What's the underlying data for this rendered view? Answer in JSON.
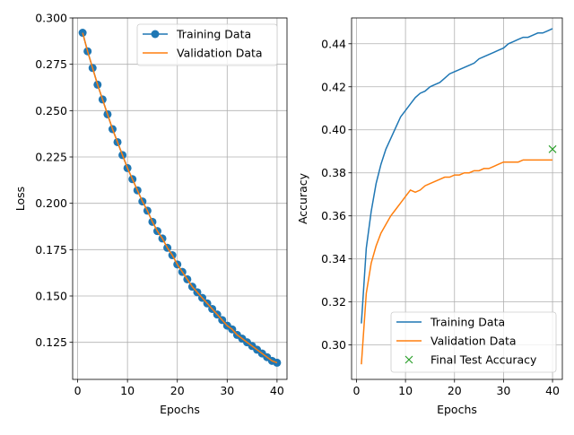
{
  "chart_data": [
    {
      "type": "line",
      "xlabel": "Epochs",
      "ylabel": "Loss",
      "xlim": [
        -1,
        42
      ],
      "ylim": [
        0.105,
        0.3
      ],
      "xticks": [
        0,
        10,
        20,
        30,
        40
      ],
      "yticks": [
        0.125,
        0.15,
        0.175,
        0.2,
        0.225,
        0.25,
        0.275,
        0.3
      ],
      "ytick_labels": [
        "0.125",
        "0.150",
        "0.175",
        "0.200",
        "0.225",
        "0.250",
        "0.275",
        "0.300"
      ],
      "grid": true,
      "legend_position": "top-right",
      "x": [
        1,
        2,
        3,
        4,
        5,
        6,
        7,
        8,
        9,
        10,
        11,
        12,
        13,
        14,
        15,
        16,
        17,
        18,
        19,
        20,
        21,
        22,
        23,
        24,
        25,
        26,
        27,
        28,
        29,
        30,
        31,
        32,
        33,
        34,
        35,
        36,
        37,
        38,
        39,
        40
      ],
      "series": [
        {
          "name": "Training Data",
          "color": "#1f77b4",
          "marker": "circle",
          "values": [
            0.292,
            0.282,
            0.273,
            0.264,
            0.256,
            0.248,
            0.24,
            0.233,
            0.226,
            0.219,
            0.213,
            0.207,
            0.201,
            0.196,
            0.19,
            0.185,
            0.181,
            0.176,
            0.172,
            0.167,
            0.163,
            0.159,
            0.155,
            0.152,
            0.149,
            0.146,
            0.143,
            0.14,
            0.137,
            0.134,
            0.132,
            0.129,
            0.127,
            0.125,
            0.123,
            0.121,
            0.119,
            0.117,
            0.115,
            0.114
          ]
        },
        {
          "name": "Validation Data",
          "color": "#ff7f0e",
          "marker": "none",
          "values": [
            0.292,
            0.282,
            0.273,
            0.264,
            0.256,
            0.248,
            0.24,
            0.233,
            0.226,
            0.219,
            0.213,
            0.207,
            0.201,
            0.196,
            0.19,
            0.185,
            0.181,
            0.176,
            0.172,
            0.167,
            0.163,
            0.159,
            0.155,
            0.152,
            0.149,
            0.146,
            0.143,
            0.14,
            0.137,
            0.134,
            0.132,
            0.129,
            0.127,
            0.125,
            0.123,
            0.121,
            0.119,
            0.117,
            0.115,
            0.114
          ]
        }
      ]
    },
    {
      "type": "line",
      "xlabel": "Epochs",
      "ylabel": "Accuracy",
      "xlim": [
        -1,
        42
      ],
      "ylim": [
        0.284,
        0.452
      ],
      "xticks": [
        0,
        10,
        20,
        30,
        40
      ],
      "yticks": [
        0.3,
        0.32,
        0.34,
        0.36,
        0.38,
        0.4,
        0.42,
        0.44
      ],
      "ytick_labels": [
        "0.30",
        "0.32",
        "0.34",
        "0.36",
        "0.38",
        "0.40",
        "0.42",
        "0.44"
      ],
      "grid": true,
      "legend_position": "bottom-right",
      "x": [
        1,
        2,
        3,
        4,
        5,
        6,
        7,
        8,
        9,
        10,
        11,
        12,
        13,
        14,
        15,
        16,
        17,
        18,
        19,
        20,
        21,
        22,
        23,
        24,
        25,
        26,
        27,
        28,
        29,
        30,
        31,
        32,
        33,
        34,
        35,
        36,
        37,
        38,
        39,
        40
      ],
      "series": [
        {
          "name": "Training Data",
          "color": "#1f77b4",
          "marker": "none",
          "values": [
            0.31,
            0.345,
            0.362,
            0.375,
            0.384,
            0.391,
            0.396,
            0.401,
            0.406,
            0.409,
            0.412,
            0.415,
            0.417,
            0.418,
            0.42,
            0.421,
            0.422,
            0.424,
            0.426,
            0.427,
            0.428,
            0.429,
            0.43,
            0.431,
            0.433,
            0.434,
            0.435,
            0.436,
            0.437,
            0.438,
            0.44,
            0.441,
            0.442,
            0.443,
            0.443,
            0.444,
            0.445,
            0.445,
            0.446,
            0.447
          ]
        },
        {
          "name": "Validation Data",
          "color": "#ff7f0e",
          "marker": "none",
          "values": [
            0.291,
            0.324,
            0.338,
            0.346,
            0.352,
            0.356,
            0.36,
            0.363,
            0.366,
            0.369,
            0.372,
            0.371,
            0.372,
            0.374,
            0.375,
            0.376,
            0.377,
            0.378,
            0.378,
            0.379,
            0.379,
            0.38,
            0.38,
            0.381,
            0.381,
            0.382,
            0.382,
            0.383,
            0.384,
            0.385,
            0.385,
            0.385,
            0.385,
            0.386,
            0.386,
            0.386,
            0.386,
            0.386,
            0.386,
            0.386
          ]
        },
        {
          "name": "Final Test Accuracy",
          "color": "#2ca02c",
          "marker": "x",
          "x": [
            40
          ],
          "values": [
            0.391
          ]
        }
      ]
    }
  ]
}
